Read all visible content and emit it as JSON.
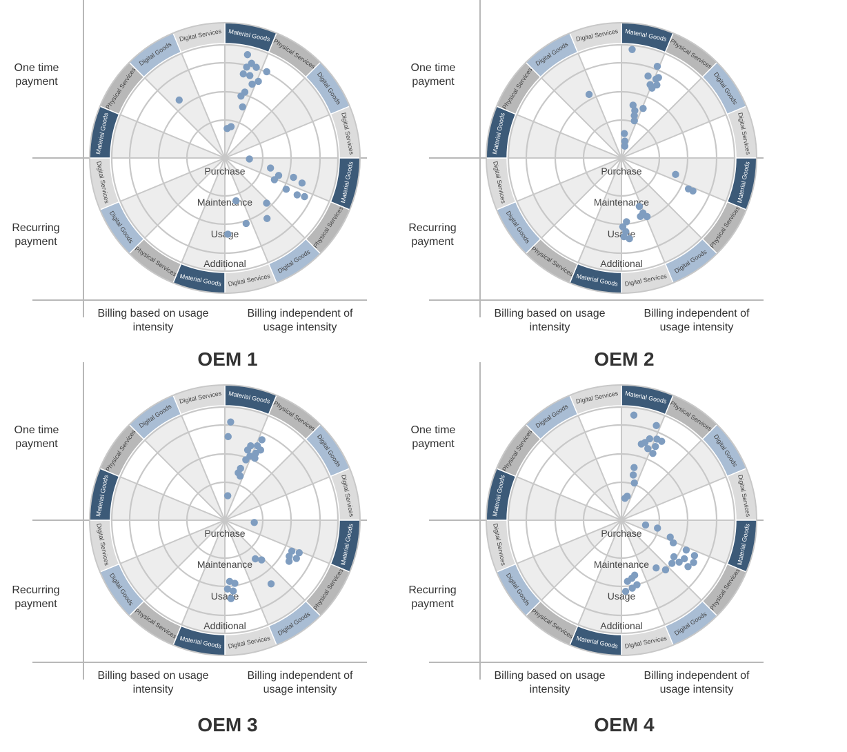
{
  "colors": {
    "material": "#3c5a78",
    "physical": "#b8b8b8",
    "digital_goods": "#a9bdd4",
    "digital_services": "#dcdcdc",
    "dot": "#7f9dc0",
    "sector_shade": "#ededed",
    "grid": "#c8c8c8"
  },
  "ring_labels": [
    "Purchase",
    "Maintenance",
    "Usage",
    "Additional"
  ],
  "outer_segments": [
    {
      "label": "Material Goods",
      "kind": "material"
    },
    {
      "label": "Physical Services",
      "kind": "physical"
    },
    {
      "label": "Digital Goods",
      "kind": "digital_goods"
    },
    {
      "label": "Digital Services",
      "kind": "digital_services"
    },
    {
      "label": "Material Goods",
      "kind": "material"
    },
    {
      "label": "Physical Services",
      "kind": "physical"
    },
    {
      "label": "Digital Goods",
      "kind": "digital_goods"
    },
    {
      "label": "Digital Services",
      "kind": "digital_services"
    },
    {
      "label": "Material Goods",
      "kind": "material"
    },
    {
      "label": "Physical Services",
      "kind": "physical"
    },
    {
      "label": "Digital Goods",
      "kind": "digital_goods"
    },
    {
      "label": "Digital Services",
      "kind": "digital_services"
    },
    {
      "label": "Material Goods",
      "kind": "material"
    },
    {
      "label": "Physical Services",
      "kind": "physical"
    },
    {
      "label": "Digital Goods",
      "kind": "digital_goods"
    },
    {
      "label": "Digital Services",
      "kind": "digital_services"
    }
  ],
  "axis_labels": {
    "top_left": "One time\npayment",
    "bottom_left": "Recurring\npayment",
    "bottom_x_left": "Billing based on usage\nintensity",
    "bottom_x_right": "Billing independent of\nusage intensity"
  },
  "panels": [
    {
      "title": "OEM 1",
      "dots": [
        {
          "seg": 0,
          "ring": 4.3,
          "off": 0.55
        },
        {
          "seg": 0,
          "ring": 4.0,
          "off": 0.7
        },
        {
          "seg": 0,
          "ring": 3.8,
          "off": 0.6
        },
        {
          "seg": 0,
          "ring": 3.9,
          "off": 0.85
        },
        {
          "seg": 0,
          "ring": 3.5,
          "off": 0.75
        },
        {
          "seg": 0,
          "ring": 3.5,
          "off": 0.55
        },
        {
          "seg": 1,
          "ring": 3.9,
          "off": 0.15
        },
        {
          "seg": 0,
          "ring": 3.2,
          "off": 0.9
        },
        {
          "seg": 1,
          "ring": 3.4,
          "off": 0.05
        },
        {
          "seg": 0,
          "ring": 2.8,
          "off": 0.75
        },
        {
          "seg": 0,
          "ring": 2.6,
          "off": 0.65
        },
        {
          "seg": 0,
          "ring": 2.2,
          "off": 0.85
        },
        {
          "seg": 0,
          "ring": 1.3,
          "off": 0.5
        },
        {
          "seg": 0,
          "ring": 1.2,
          "off": 0.2
        },
        {
          "seg": 14,
          "ring": 3.0,
          "off": 0.3
        },
        {
          "seg": 4,
          "ring": 1.0,
          "off": 0.1
        },
        {
          "seg": 4,
          "ring": 1.9,
          "off": 0.55
        },
        {
          "seg": 4,
          "ring": 2.3,
          "off": 0.8
        },
        {
          "seg": 5,
          "ring": 2.2,
          "off": 0.05
        },
        {
          "seg": 4,
          "ring": 2.9,
          "off": 0.7
        },
        {
          "seg": 4,
          "ring": 3.3,
          "off": 0.8
        },
        {
          "seg": 5,
          "ring": 2.8,
          "off": 0.2
        },
        {
          "seg": 5,
          "ring": 3.3,
          "off": 0.2
        },
        {
          "seg": 5,
          "ring": 3.6,
          "off": 0.15
        },
        {
          "seg": 6,
          "ring": 2.5,
          "off": 0.1
        },
        {
          "seg": 7,
          "ring": 1.8,
          "off": 0.35
        },
        {
          "seg": 6,
          "ring": 3.0,
          "off": 0.45
        },
        {
          "seg": 7,
          "ring": 2.8,
          "off": 0.2
        },
        {
          "seg": 7,
          "ring": 3.1,
          "off": 0.9
        }
      ]
    },
    {
      "title": "OEM 2",
      "dots": [
        {
          "seg": 0,
          "ring": 4.6,
          "off": 0.25
        },
        {
          "seg": 0,
          "ring": 4.0,
          "off": 0.95
        },
        {
          "seg": 1,
          "ring": 3.5,
          "off": 0.05
        },
        {
          "seg": 0,
          "ring": 3.5,
          "off": 0.8
        },
        {
          "seg": 1,
          "ring": 3.3,
          "off": 0.15
        },
        {
          "seg": 1,
          "ring": 3.1,
          "off": 0.05
        },
        {
          "seg": 0,
          "ring": 3.2,
          "off": 0.95
        },
        {
          "seg": 1,
          "ring": 3.6,
          "off": 0.1
        },
        {
          "seg": 0,
          "ring": 2.0,
          "off": 0.7
        },
        {
          "seg": 0,
          "ring": 2.2,
          "off": 0.55
        },
        {
          "seg": 1,
          "ring": 2.2,
          "off": 0.05
        },
        {
          "seg": 0,
          "ring": 1.8,
          "off": 0.75
        },
        {
          "seg": 0,
          "ring": 1.6,
          "off": 0.85
        },
        {
          "seg": 0,
          "ring": 1.0,
          "off": 0.3
        },
        {
          "seg": 0,
          "ring": 0.7,
          "off": 0.5
        },
        {
          "seg": 0,
          "ring": 0.5,
          "off": 0.7
        },
        {
          "seg": 14,
          "ring": 2.9,
          "off": 0.8
        },
        {
          "seg": 4,
          "ring": 2.3,
          "off": 0.75
        },
        {
          "seg": 5,
          "ring": 3.0,
          "off": 0.1
        },
        {
          "seg": 5,
          "ring": 3.2,
          "off": 0.1
        },
        {
          "seg": 7,
          "ring": 2.5,
          "off": 0.2
        },
        {
          "seg": 7,
          "ring": 2.1,
          "off": 0.1
        },
        {
          "seg": 7,
          "ring": 2.4,
          "off": 0.05
        },
        {
          "seg": 7,
          "ring": 2.8,
          "off": 0.95
        },
        {
          "seg": 7,
          "ring": 3.0,
          "off": 0.85
        },
        {
          "seg": 7,
          "ring": 2.6,
          "off": 0.8
        },
        {
          "seg": 6,
          "ring": 2.6,
          "off": 0.95
        },
        {
          "seg": 7,
          "ring": 3.2,
          "off": 0.92
        },
        {
          "seg": 7,
          "ring": 3.3,
          "off": 0.75
        }
      ]
    },
    {
      "title": "OEM 3",
      "dots": [
        {
          "seg": 0,
          "ring": 4.0,
          "off": 0.15
        },
        {
          "seg": 0,
          "ring": 3.4,
          "off": 0.1
        },
        {
          "seg": 0,
          "ring": 3.2,
          "off": 0.85
        },
        {
          "seg": 0,
          "ring": 3.0,
          "off": 0.8
        },
        {
          "seg": 1,
          "ring": 3.3,
          "off": 0.05
        },
        {
          "seg": 1,
          "ring": 3.0,
          "off": 0.1
        },
        {
          "seg": 0,
          "ring": 2.8,
          "off": 0.95
        },
        {
          "seg": 1,
          "ring": 2.8,
          "off": 0.15
        },
        {
          "seg": 0,
          "ring": 2.6,
          "off": 0.85
        },
        {
          "seg": 1,
          "ring": 3.6,
          "off": 0.1
        },
        {
          "seg": 1,
          "ring": 3.2,
          "off": 0.2
        },
        {
          "seg": 0,
          "ring": 2.2,
          "off": 0.75
        },
        {
          "seg": 0,
          "ring": 2.0,
          "off": 0.7
        },
        {
          "seg": 0,
          "ring": 1.9,
          "off": 0.85
        },
        {
          "seg": 0,
          "ring": 1.0,
          "off": 0.3
        },
        {
          "seg": 4,
          "ring": 1.2,
          "off": 0.2
        },
        {
          "seg": 5,
          "ring": 3.0,
          "off": 0.1
        },
        {
          "seg": 5,
          "ring": 3.3,
          "off": 0.05
        },
        {
          "seg": 5,
          "ring": 3.3,
          "off": 0.25
        },
        {
          "seg": 5,
          "ring": 3.0,
          "off": 0.3
        },
        {
          "seg": 5,
          "ring": 3.1,
          "off": 0.45
        },
        {
          "seg": 6,
          "ring": 2.2,
          "off": 0.1
        },
        {
          "seg": 6,
          "ring": 2.0,
          "off": 0.3
        },
        {
          "seg": 7,
          "ring": 2.5,
          "off": 0.8
        },
        {
          "seg": 7,
          "ring": 2.6,
          "off": 0.6
        },
        {
          "seg": 7,
          "ring": 2.8,
          "off": 0.9
        },
        {
          "seg": 7,
          "ring": 2.9,
          "off": 0.7
        },
        {
          "seg": 7,
          "ring": 3.2,
          "off": 0.8
        },
        {
          "seg": 6,
          "ring": 3.2,
          "off": 0.4
        }
      ]
    },
    {
      "title": "OEM 4",
      "dots": [
        {
          "seg": 0,
          "ring": 4.3,
          "off": 0.3
        },
        {
          "seg": 0,
          "ring": 4.1,
          "off": 0.9
        },
        {
          "seg": 0,
          "ring": 3.3,
          "off": 0.75
        },
        {
          "seg": 0,
          "ring": 3.5,
          "off": 0.85
        },
        {
          "seg": 1,
          "ring": 3.6,
          "off": 0.05
        },
        {
          "seg": 0,
          "ring": 3.1,
          "off": 0.9
        },
        {
          "seg": 1,
          "ring": 3.3,
          "off": 0.1
        },
        {
          "seg": 1,
          "ring": 3.6,
          "off": 0.2
        },
        {
          "seg": 0,
          "ring": 3.2,
          "off": 0.65
        },
        {
          "seg": 1,
          "ring": 3.0,
          "off": 0.12
        },
        {
          "seg": 0,
          "ring": 2.2,
          "off": 0.6
        },
        {
          "seg": 0,
          "ring": 1.9,
          "off": 0.65
        },
        {
          "seg": 0,
          "ring": 1.6,
          "off": 0.85
        },
        {
          "seg": 0,
          "ring": 1.0,
          "off": 0.6
        },
        {
          "seg": 0,
          "ring": 0.9,
          "off": 0.4
        },
        {
          "seg": 4,
          "ring": 1.0,
          "off": 0.5
        },
        {
          "seg": 4,
          "ring": 1.5,
          "off": 0.55
        },
        {
          "seg": 4,
          "ring": 2.1,
          "off": 0.85
        },
        {
          "seg": 5,
          "ring": 2.3,
          "off": 0.05
        },
        {
          "seg": 5,
          "ring": 2.9,
          "off": 0.1
        },
        {
          "seg": 5,
          "ring": 3.3,
          "off": 0.15
        },
        {
          "seg": 5,
          "ring": 3.4,
          "off": 0.35
        },
        {
          "seg": 5,
          "ring": 3.0,
          "off": 0.4
        },
        {
          "seg": 5,
          "ring": 2.6,
          "off": 0.55
        },
        {
          "seg": 5,
          "ring": 2.9,
          "off": 0.6
        },
        {
          "seg": 5,
          "ring": 3.3,
          "off": 0.55
        },
        {
          "seg": 6,
          "ring": 2.7,
          "off": 0.15
        },
        {
          "seg": 6,
          "ring": 2.4,
          "off": 0.4
        },
        {
          "seg": 5,
          "ring": 2.7,
          "off": 0.8
        },
        {
          "seg": 7,
          "ring": 2.3,
          "off": 0.4
        },
        {
          "seg": 7,
          "ring": 2.4,
          "off": 0.55
        },
        {
          "seg": 7,
          "ring": 2.5,
          "off": 0.75
        },
        {
          "seg": 7,
          "ring": 2.7,
          "off": 0.4
        },
        {
          "seg": 7,
          "ring": 2.8,
          "off": 0.6
        },
        {
          "seg": 7,
          "ring": 2.9,
          "off": 0.85
        }
      ]
    }
  ]
}
